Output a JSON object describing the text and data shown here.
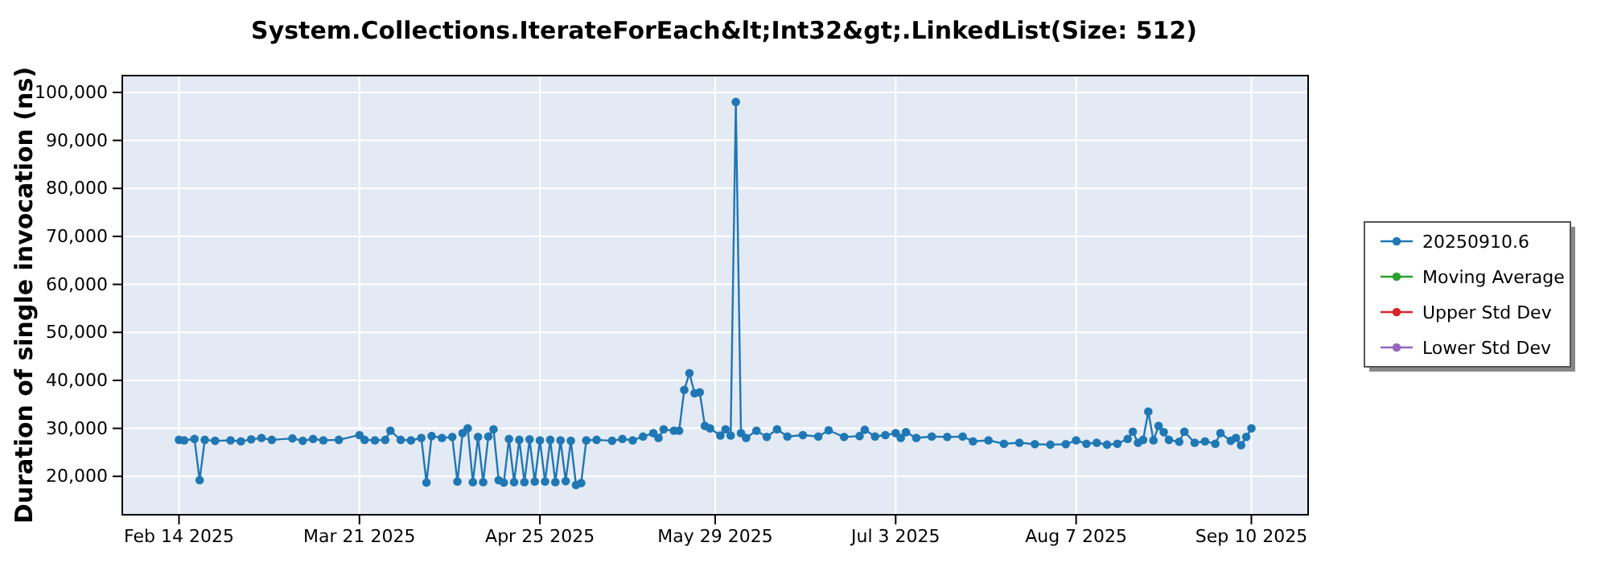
{
  "chart_data": {
    "type": "line",
    "title": "System.Collections.IterateForEach&lt;Int32&gt;.LinkedList(Size: 512)",
    "ylabel": "Duration of single invocation (ns)",
    "xlim": [
      "2025-02-03",
      "2025-09-21"
    ],
    "xticks": [
      {
        "value": "2025-02-14",
        "label": "Feb 14 2025"
      },
      {
        "value": "2025-03-21",
        "label": "Mar 21 2025"
      },
      {
        "value": "2025-04-25",
        "label": "Apr 25 2025"
      },
      {
        "value": "2025-05-29",
        "label": "May 29 2025"
      },
      {
        "value": "2025-07-03",
        "label": "Jul 3 2025"
      },
      {
        "value": "2025-08-07",
        "label": "Aug 7 2025"
      },
      {
        "value": "2025-09-10",
        "label": "Sep 10 2025"
      }
    ],
    "ylim": [
      12000,
      103500
    ],
    "yticks": [
      {
        "value": 20000,
        "label": "20,000"
      },
      {
        "value": 30000,
        "label": "30,000"
      },
      {
        "value": 40000,
        "label": "40,000"
      },
      {
        "value": 50000,
        "label": "50,000"
      },
      {
        "value": 60000,
        "label": "60,000"
      },
      {
        "value": 70000,
        "label": "70,000"
      },
      {
        "value": 80000,
        "label": "80,000"
      },
      {
        "value": 90000,
        "label": "90,000"
      },
      {
        "value": 100000,
        "label": "100,000"
      }
    ],
    "grid": true,
    "legend": "right",
    "marker": "circle",
    "x": [
      "2025-02-14",
      "2025-02-15",
      "2025-02-17",
      "2025-02-18",
      "2025-02-19",
      "2025-02-21",
      "2025-02-24",
      "2025-02-26",
      "2025-02-28",
      "2025-03-02",
      "2025-03-04",
      "2025-03-08",
      "2025-03-10",
      "2025-03-12",
      "2025-03-14",
      "2025-03-17",
      "2025-03-21",
      "2025-03-22",
      "2025-03-24",
      "2025-03-26",
      "2025-03-27",
      "2025-03-29",
      "2025-03-31",
      "2025-04-02",
      "2025-04-03",
      "2025-04-04",
      "2025-04-06",
      "2025-04-08",
      "2025-04-09",
      "2025-04-10",
      "2025-04-11",
      "2025-04-12",
      "2025-04-13",
      "2025-04-14",
      "2025-04-15",
      "2025-04-16",
      "2025-04-17",
      "2025-04-18",
      "2025-04-19",
      "2025-04-20",
      "2025-04-21",
      "2025-04-22",
      "2025-04-23",
      "2025-04-24",
      "2025-04-25",
      "2025-04-26",
      "2025-04-27",
      "2025-04-28",
      "2025-04-29",
      "2025-04-30",
      "2025-05-01",
      "2025-05-02",
      "2025-05-03",
      "2025-05-04",
      "2025-05-06",
      "2025-05-09",
      "2025-05-11",
      "2025-05-13",
      "2025-05-15",
      "2025-05-17",
      "2025-05-18",
      "2025-05-19",
      "2025-05-21",
      "2025-05-22",
      "2025-05-23",
      "2025-05-24",
      "2025-05-25",
      "2025-05-26",
      "2025-05-27",
      "2025-05-28",
      "2025-05-30",
      "2025-05-31",
      "2025-06-01",
      "2025-06-02",
      "2025-06-03",
      "2025-06-04",
      "2025-06-06",
      "2025-06-08",
      "2025-06-10",
      "2025-06-12",
      "2025-06-15",
      "2025-06-18",
      "2025-06-20",
      "2025-06-23",
      "2025-06-26",
      "2025-06-27",
      "2025-06-29",
      "2025-07-01",
      "2025-07-03",
      "2025-07-04",
      "2025-07-05",
      "2025-07-07",
      "2025-07-10",
      "2025-07-13",
      "2025-07-16",
      "2025-07-18",
      "2025-07-21",
      "2025-07-24",
      "2025-07-27",
      "2025-07-30",
      "2025-08-02",
      "2025-08-05",
      "2025-08-07",
      "2025-08-09",
      "2025-08-11",
      "2025-08-13",
      "2025-08-15",
      "2025-08-17",
      "2025-08-18",
      "2025-08-19",
      "2025-08-20",
      "2025-08-21",
      "2025-08-22",
      "2025-08-23",
      "2025-08-24",
      "2025-08-25",
      "2025-08-27",
      "2025-08-28",
      "2025-08-30",
      "2025-09-01",
      "2025-09-03",
      "2025-09-04",
      "2025-09-06",
      "2025-09-07",
      "2025-09-08",
      "2025-09-09",
      "2025-09-10"
    ],
    "series": [
      {
        "name": "20250910.6",
        "color": "#1f77b4",
        "values": [
          27600,
          27500,
          27800,
          19200,
          27600,
          27400,
          27500,
          27300,
          27700,
          28000,
          27600,
          27900,
          27400,
          27800,
          27500,
          27600,
          28600,
          27600,
          27500,
          27600,
          29500,
          27600,
          27500,
          28000,
          18700,
          28400,
          28000,
          28200,
          18900,
          29000,
          30000,
          18800,
          28200,
          18800,
          28300,
          29800,
          19200,
          18700,
          27800,
          18800,
          27600,
          18800,
          27700,
          18900,
          27500,
          18900,
          27600,
          18800,
          27500,
          19000,
          27400,
          18200,
          18600,
          27500,
          27600,
          27400,
          27800,
          27500,
          28300,
          29000,
          28000,
          29800,
          29500,
          29500,
          38000,
          41500,
          37300,
          37500,
          30500,
          30000,
          28500,
          29800,
          28500,
          98000,
          29000,
          28000,
          29500,
          28200,
          29800,
          28300,
          28600,
          28300,
          29600,
          28200,
          28400,
          29700,
          28300,
          28600,
          29000,
          28000,
          29200,
          28000,
          28300,
          28200,
          28300,
          27300,
          27500,
          26800,
          27000,
          26700,
          26600,
          26700,
          27500,
          26800,
          27000,
          26600,
          26800,
          27800,
          29300,
          27000,
          27600,
          33500,
          27500,
          30500,
          29200,
          27600,
          27200,
          29300,
          27000,
          27300,
          26800,
          29000,
          27400,
          28000,
          26500,
          28200,
          30000
        ]
      },
      {
        "name": "Moving Average",
        "color": "#2ca02c",
        "values": [
          null,
          null,
          null,
          null,
          null,
          null,
          null,
          null,
          null,
          null,
          null,
          null,
          null,
          null,
          null,
          null,
          null,
          null,
          null,
          null,
          null,
          null,
          null,
          null,
          null,
          null,
          null,
          null,
          null,
          null,
          null,
          null,
          null,
          null,
          null,
          null,
          null,
          null,
          null,
          null,
          null,
          null,
          null,
          null,
          null,
          null,
          null,
          null,
          null,
          null,
          null,
          null,
          null,
          null,
          null,
          null,
          null,
          null,
          null,
          null,
          null,
          null,
          null,
          null,
          null,
          null,
          null,
          null,
          null,
          null,
          null,
          null,
          null,
          null,
          null,
          null,
          null,
          null,
          null,
          null,
          null,
          null,
          null,
          null,
          null,
          null,
          null,
          null,
          null,
          null,
          null,
          null,
          null,
          null,
          null,
          null,
          null,
          null,
          null,
          null,
          null,
          null,
          null,
          null,
          null,
          null,
          null,
          null,
          null,
          null,
          null,
          null,
          null,
          null,
          null,
          null,
          null,
          null,
          null,
          null,
          null,
          null,
          null,
          null,
          null,
          null,
          null
        ]
      },
      {
        "name": "Upper Std Dev",
        "color": "#d62728",
        "values": [
          null,
          null,
          null,
          null,
          null,
          null,
          null,
          null,
          null,
          null,
          null,
          null,
          null,
          null,
          null,
          null,
          null,
          null,
          null,
          null,
          null,
          null,
          null,
          null,
          null,
          null,
          null,
          null,
          null,
          null,
          null,
          null,
          null,
          null,
          null,
          null,
          null,
          null,
          null,
          null,
          null,
          null,
          null,
          null,
          null,
          null,
          null,
          null,
          null,
          null,
          null,
          null,
          null,
          null,
          null,
          null,
          null,
          null,
          null,
          null,
          null,
          null,
          null,
          null,
          null,
          null,
          null,
          null,
          null,
          null,
          null,
          null,
          null,
          null,
          null,
          null,
          null,
          null,
          null,
          null,
          null,
          null,
          null,
          null,
          null,
          null,
          null,
          null,
          null,
          null,
          null,
          null,
          null,
          null,
          null,
          null,
          null,
          null,
          null,
          null,
          null,
          null,
          null,
          null,
          null,
          null,
          null,
          null,
          null,
          null,
          null,
          null,
          null,
          null,
          null,
          null,
          null,
          null,
          null,
          null,
          null,
          null,
          null,
          null,
          null,
          null,
          null
        ]
      },
      {
        "name": "Lower Std Dev",
        "color": "#9467bd",
        "values": [
          null,
          null,
          null,
          null,
          null,
          null,
          null,
          null,
          null,
          null,
          null,
          null,
          null,
          null,
          null,
          null,
          null,
          null,
          null,
          null,
          null,
          null,
          null,
          null,
          null,
          null,
          null,
          null,
          null,
          null,
          null,
          null,
          null,
          null,
          null,
          null,
          null,
          null,
          null,
          null,
          null,
          null,
          null,
          null,
          null,
          null,
          null,
          null,
          null,
          null,
          null,
          null,
          null,
          null,
          null,
          null,
          null,
          null,
          null,
          null,
          null,
          null,
          null,
          null,
          null,
          null,
          null,
          null,
          null,
          null,
          null,
          null,
          null,
          null,
          null,
          null,
          null,
          null,
          null,
          null,
          null,
          null,
          null,
          null,
          null,
          null,
          null,
          null,
          null,
          null,
          null,
          null,
          null,
          null,
          null,
          null,
          null,
          null,
          null,
          null,
          null,
          null,
          null,
          null,
          null,
          null,
          null,
          null,
          null,
          null,
          null,
          null,
          null,
          null,
          null,
          null,
          null,
          null,
          null,
          null,
          null,
          null,
          null,
          null,
          null,
          null,
          null
        ]
      }
    ]
  }
}
